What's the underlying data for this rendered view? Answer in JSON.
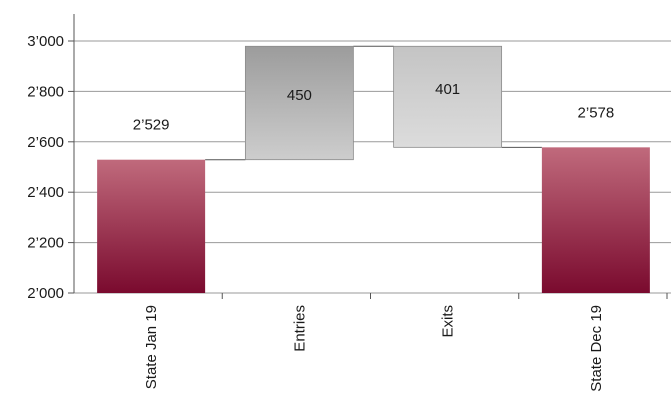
{
  "chart_data": {
    "type": "waterfall",
    "categories": [
      "State Jan 19",
      "Entries",
      "Exits",
      "State Dec 19"
    ],
    "bars": [
      {
        "category": "State Jan 19",
        "kind": "total",
        "start": 2000,
        "end": 2529,
        "label": "2’529",
        "color_top": "#c06a7c",
        "color_bottom": "#7a0a2e"
      },
      {
        "category": "Entries",
        "kind": "increase",
        "start": 2529,
        "end": 2979,
        "label": "450",
        "color_top": "#9c9c9c",
        "color_bottom": "#cdcdcd"
      },
      {
        "category": "Exits",
        "kind": "decrease",
        "start": 2979,
        "end": 2578,
        "label": "401",
        "color_top": "#c4c4c4",
        "color_bottom": "#dcdcdc"
      },
      {
        "category": "State Dec 19",
        "kind": "total",
        "start": 2000,
        "end": 2578,
        "label": "2’578",
        "color_top": "#c06a7c",
        "color_bottom": "#7a0a2e"
      }
    ],
    "y_ticks": [
      "2’000",
      "2’200",
      "2’400",
      "2’600",
      "2’800",
      "3’000"
    ],
    "ylim": [
      2000,
      3000
    ],
    "grid": true,
    "title": "",
    "xlabel": "",
    "ylabel": ""
  }
}
